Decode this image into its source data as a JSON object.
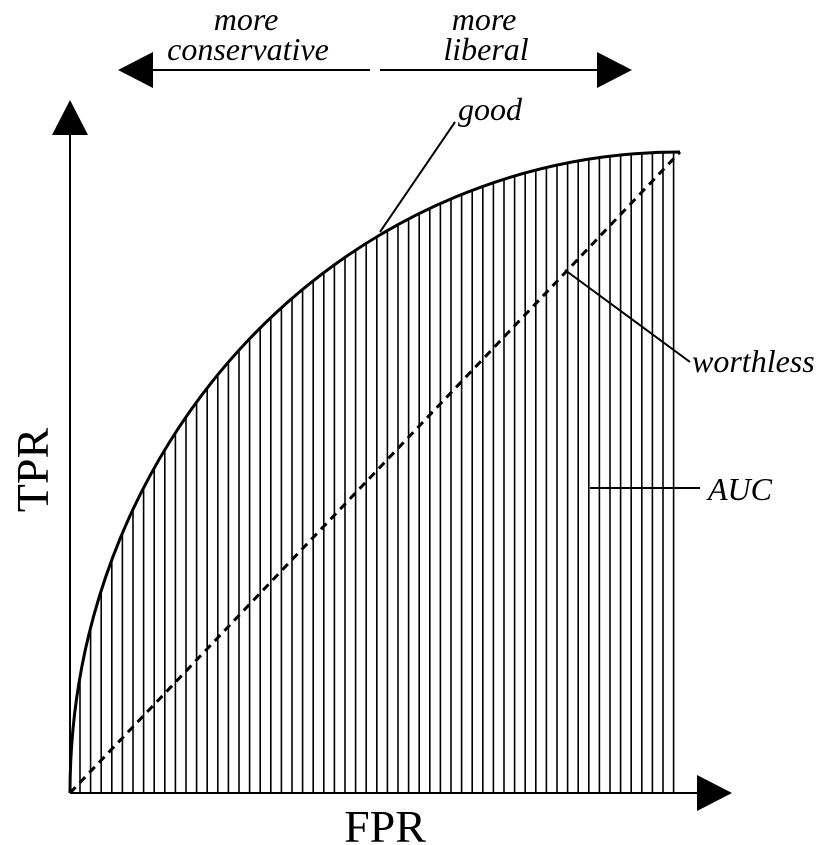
{
  "direction": {
    "left": [
      "more",
      "conservative"
    ],
    "right": [
      "more",
      "liberal"
    ]
  },
  "annotations": {
    "good": "good",
    "worthless": "worthless",
    "auc": "AUC"
  },
  "axes": {
    "x_label": "FPR",
    "y_label": "TPR"
  }
}
